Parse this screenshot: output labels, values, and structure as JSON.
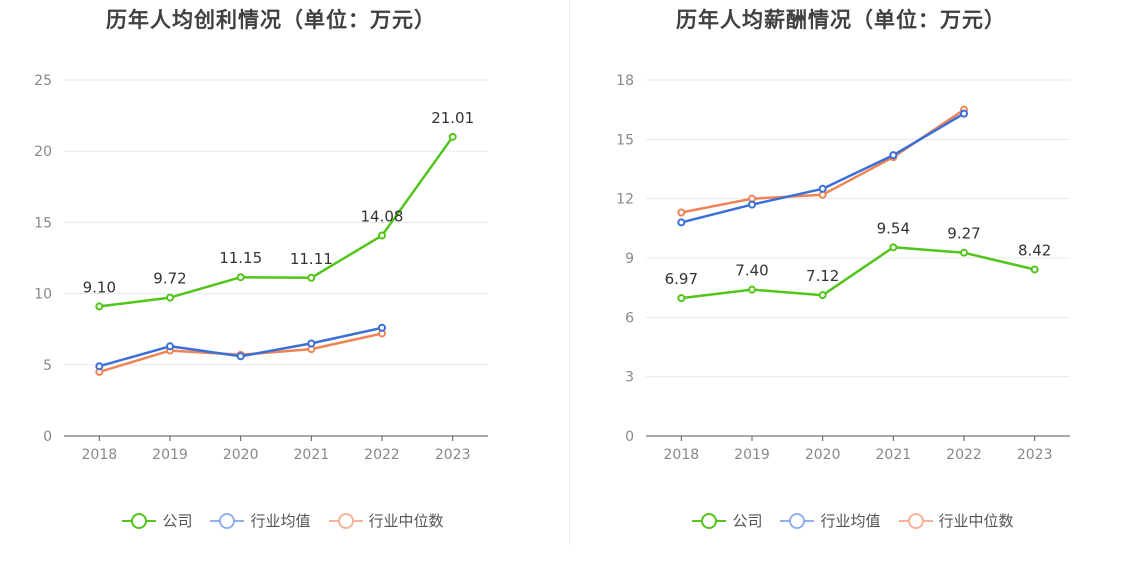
{
  "colors": {
    "company": "#52c41a",
    "industry_avg": "#3a6fd8",
    "industry_median": "#f08356",
    "grid": "#e8e8e8",
    "axis": "#555555"
  },
  "legend": {
    "company": "公司",
    "industry_avg": "行业均值",
    "industry_median": "行业中位数"
  },
  "chart_data": [
    {
      "type": "line",
      "title": "历年人均创利情况（单位：万元）",
      "categories": [
        "2018",
        "2019",
        "2020",
        "2021",
        "2022",
        "2023"
      ],
      "ylim": [
        0,
        25
      ],
      "yticks": [
        0,
        5,
        10,
        15,
        20,
        25
      ],
      "grid": true,
      "legend_position": "bottom",
      "series": [
        {
          "name": "公司",
          "key": "company",
          "values": [
            9.1,
            9.72,
            11.15,
            11.11,
            14.08,
            21.01
          ],
          "labels": [
            "9.10",
            "9.72",
            "11.15",
            "11.11",
            "14.08",
            "21.01"
          ]
        },
        {
          "name": "行业均值",
          "key": "industry_avg",
          "values": [
            4.9,
            6.3,
            5.6,
            6.5,
            7.6,
            null
          ]
        },
        {
          "name": "行业中位数",
          "key": "industry_median",
          "values": [
            4.5,
            6.0,
            5.7,
            6.1,
            7.2,
            null
          ]
        }
      ]
    },
    {
      "type": "line",
      "title": "历年人均薪酬情况（单位：万元）",
      "categories": [
        "2018",
        "2019",
        "2020",
        "2021",
        "2022",
        "2023"
      ],
      "ylim": [
        0,
        18
      ],
      "yticks": [
        0,
        3,
        6,
        9,
        12,
        15,
        18
      ],
      "grid": true,
      "legend_position": "bottom",
      "series": [
        {
          "name": "公司",
          "key": "company",
          "values": [
            6.97,
            7.4,
            7.12,
            9.54,
            9.27,
            8.42
          ],
          "labels": [
            "6.97",
            "7.40",
            "7.12",
            "9.54",
            "9.27",
            "8.42"
          ]
        },
        {
          "name": "行业均值",
          "key": "industry_avg",
          "values": [
            10.8,
            11.7,
            12.5,
            14.2,
            16.3,
            null
          ]
        },
        {
          "name": "行业中位数",
          "key": "industry_median",
          "values": [
            11.3,
            12.0,
            12.2,
            14.1,
            16.5,
            null
          ]
        }
      ]
    }
  ]
}
